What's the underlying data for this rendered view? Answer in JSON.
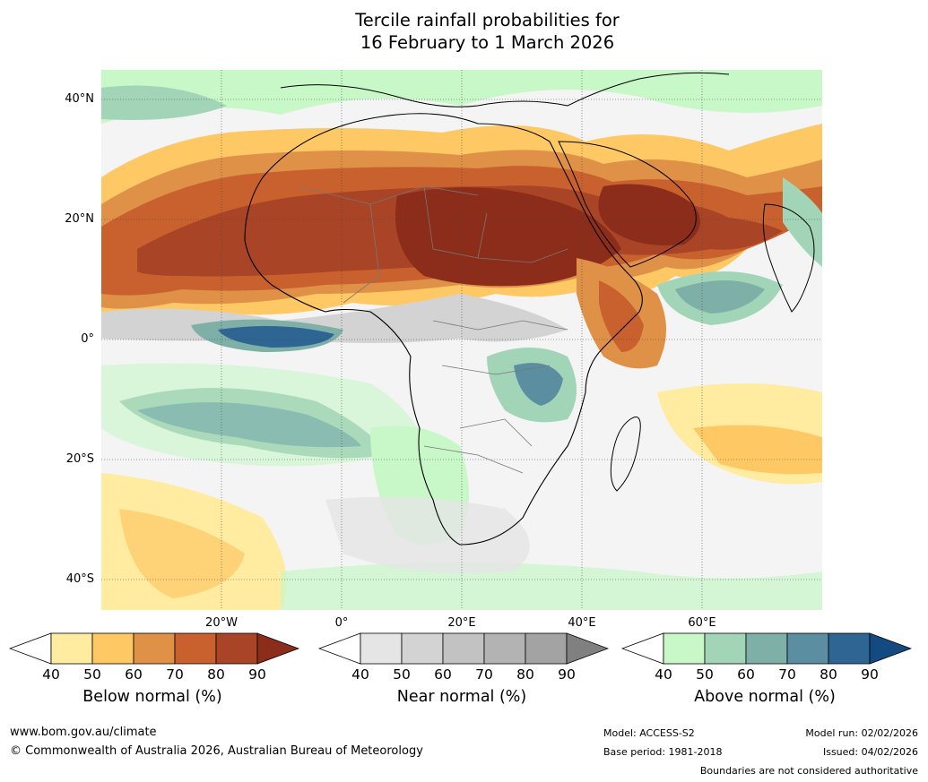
{
  "title_line1": "Tercile rainfall probabilities for",
  "title_line2": "16 February to 1 March 2026",
  "lat_labels": [
    "40°N",
    "20°N",
    "0°",
    "20°S",
    "40°S"
  ],
  "lon_labels": [
    "20°W",
    "0°",
    "20°E",
    "40°E",
    "60°E"
  ],
  "colorbars": [
    {
      "title": "Below normal (%)",
      "ticks": [
        "40",
        "50",
        "60",
        "70",
        "80",
        "90"
      ],
      "colors": [
        "#ffffff",
        "#ffeca0",
        "#fec965",
        "#e09148",
        "#c9612f",
        "#aa4426",
        "#8c2d1b"
      ]
    },
    {
      "title": "Near normal (%)",
      "ticks": [
        "40",
        "50",
        "60",
        "70",
        "80",
        "90"
      ],
      "colors": [
        "#ffffff",
        "#e5e5e5",
        "#d3d3d3",
        "#c2c2c2",
        "#b3b3b3",
        "#a3a3a3",
        "#808080"
      ]
    },
    {
      "title": "Above normal (%)",
      "ticks": [
        "40",
        "50",
        "60",
        "70",
        "80",
        "90"
      ],
      "colors": [
        "#ffffff",
        "#c8f7c8",
        "#a2d5b8",
        "#7fb0a8",
        "#5a8ea0",
        "#2f6592",
        "#144a82"
      ]
    }
  ],
  "footer": {
    "website": "www.bom.gov.au/climate",
    "copyright": "© Commonwealth of Australia 2026, Australian Bureau of Meteorology",
    "model": "Model: ACCESS-S2",
    "base_period": "Base period: 1981-2018",
    "model_run": "Model run: 02/02/2026",
    "issued": "Issued: 04/02/2026",
    "disclaimer": "Boundaries are not considered authoritative"
  }
}
